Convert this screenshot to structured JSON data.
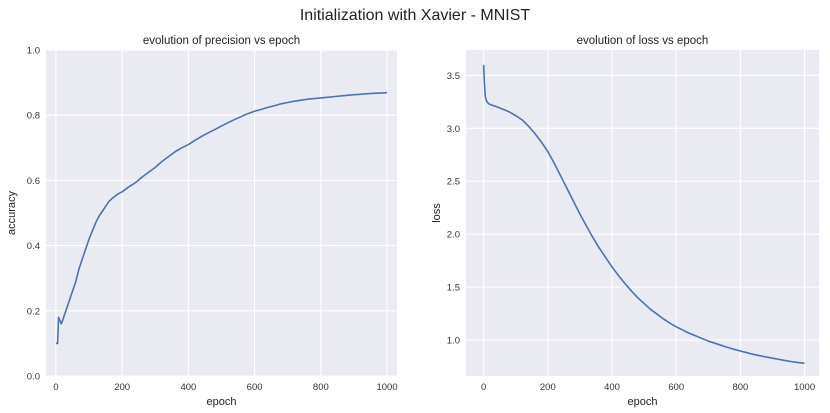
{
  "figure": {
    "title": "Initialization with Xavier - MNIST"
  },
  "chart_data": [
    {
      "type": "line",
      "title": "evolution of precision vs epoch",
      "xlabel": "epoch",
      "ylabel": "accuracy",
      "xlim": [
        -30,
        1030
      ],
      "ylim": [
        0.0,
        1.0
      ],
      "xticks": [
        0,
        200,
        400,
        600,
        800,
        1000
      ],
      "yticks": [
        0.0,
        0.2,
        0.4,
        0.6,
        0.8,
        1.0
      ],
      "xtick_labels": [
        "0",
        "200",
        "400",
        "600",
        "800",
        "1000"
      ],
      "ytick_labels": [
        "0.0",
        "0.2",
        "0.4",
        "0.6",
        "0.8",
        "1.0"
      ],
      "grid": true,
      "color": "#4c72b0",
      "series": [
        {
          "x": [
            0,
            5,
            8,
            12,
            16,
            20,
            30,
            40,
            50,
            60,
            70,
            80,
            90,
            100,
            110,
            120,
            130,
            140,
            150,
            160,
            170,
            180,
            190,
            200,
            220,
            240,
            260,
            280,
            300,
            320,
            340,
            360,
            380,
            400,
            420,
            440,
            460,
            480,
            500,
            520,
            540,
            560,
            580,
            600,
            620,
            640,
            660,
            680,
            700,
            720,
            740,
            760,
            780,
            800,
            820,
            840,
            860,
            880,
            900,
            920,
            940,
            960,
            980,
            1000
          ],
          "y": [
            0.1,
            0.1,
            0.18,
            0.17,
            0.16,
            0.17,
            0.2,
            0.23,
            0.26,
            0.29,
            0.33,
            0.36,
            0.39,
            0.42,
            0.445,
            0.47,
            0.49,
            0.505,
            0.52,
            0.535,
            0.545,
            0.553,
            0.56,
            0.565,
            0.58,
            0.593,
            0.61,
            0.625,
            0.64,
            0.658,
            0.673,
            0.688,
            0.7,
            0.71,
            0.723,
            0.735,
            0.746,
            0.756,
            0.767,
            0.777,
            0.787,
            0.796,
            0.805,
            0.812,
            0.818,
            0.824,
            0.829,
            0.835,
            0.839,
            0.843,
            0.846,
            0.849,
            0.851,
            0.853,
            0.855,
            0.857,
            0.859,
            0.861,
            0.863,
            0.864,
            0.866,
            0.867,
            0.868,
            0.869
          ]
        }
      ]
    },
    {
      "type": "line",
      "title": "evolution of loss vs epoch",
      "xlabel": "epoch",
      "ylabel": "loss",
      "xlim": [
        -55,
        1045
      ],
      "ylim": [
        0.66,
        3.74
      ],
      "xticks": [
        0,
        200,
        400,
        600,
        800,
        1000
      ],
      "yticks": [
        1.0,
        1.5,
        2.0,
        2.5,
        3.0,
        3.5
      ],
      "xtick_labels": [
        "0",
        "200",
        "400",
        "600",
        "800",
        "1000"
      ],
      "ytick_labels": [
        "1.0",
        "1.5",
        "2.0",
        "2.5",
        "3.0",
        "3.5"
      ],
      "grid": true,
      "color": "#4c72b0",
      "series": [
        {
          "x": [
            0,
            2,
            5,
            10,
            15,
            20,
            30,
            40,
            60,
            80,
            100,
            120,
            140,
            160,
            180,
            200,
            220,
            240,
            260,
            280,
            300,
            320,
            340,
            360,
            380,
            400,
            420,
            440,
            460,
            480,
            500,
            520,
            540,
            560,
            580,
            600,
            620,
            640,
            660,
            680,
            700,
            720,
            740,
            760,
            780,
            800,
            820,
            840,
            860,
            880,
            900,
            920,
            940,
            960,
            980,
            1000
          ],
          "y": [
            3.6,
            3.45,
            3.3,
            3.25,
            3.235,
            3.225,
            3.215,
            3.205,
            3.18,
            3.155,
            3.12,
            3.08,
            3.02,
            2.95,
            2.87,
            2.78,
            2.67,
            2.55,
            2.43,
            2.31,
            2.19,
            2.08,
            1.97,
            1.87,
            1.78,
            1.69,
            1.61,
            1.535,
            1.465,
            1.4,
            1.345,
            1.29,
            1.245,
            1.2,
            1.16,
            1.125,
            1.095,
            1.065,
            1.04,
            1.015,
            0.99,
            0.97,
            0.95,
            0.93,
            0.912,
            0.896,
            0.88,
            0.865,
            0.852,
            0.84,
            0.828,
            0.817,
            0.806,
            0.796,
            0.787,
            0.78
          ]
        }
      ]
    }
  ]
}
